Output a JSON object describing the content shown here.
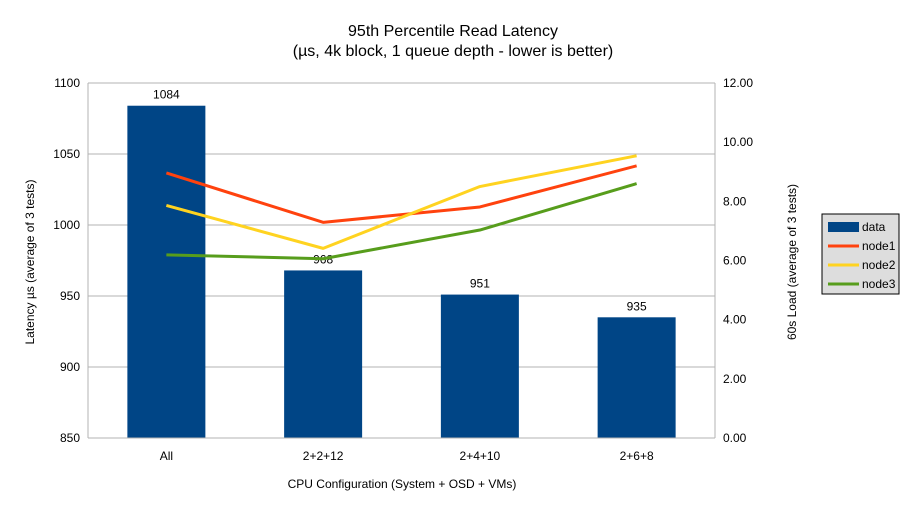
{
  "chart_data": {
    "type": "bar+line",
    "title": "95th Percentile Read Latency",
    "subtitle": "(µs, 4k block, 1 queue depth - lower is better)",
    "xlabel": "CPU Configuration (System + OSD + VMs)",
    "ylabel": "Latency µs (average of 3 tests)",
    "y2label": "60s Load (average of 3 tests)",
    "categories": [
      "All",
      "2+2+12",
      "2+4+10",
      "2+6+8"
    ],
    "ylim": [
      850,
      1100
    ],
    "yticks": [
      "850",
      "900",
      "950",
      "1000",
      "1050",
      "1100"
    ],
    "y2lim": [
      0,
      12
    ],
    "y2ticks": [
      "0.00",
      "2.00",
      "4.00",
      "6.00",
      "8.00",
      "10.00",
      "12.00"
    ],
    "grid": true,
    "legend_position": "right",
    "bar_series": {
      "name": "data",
      "axis": "left",
      "color": "#004586",
      "values": [
        1084,
        968,
        951,
        935
      ],
      "labels": [
        "1084",
        "968",
        "951",
        "935"
      ]
    },
    "line_series": [
      {
        "name": "node1",
        "axis": "right",
        "color": "#ff420e",
        "values": [
          8.96,
          7.29,
          7.81,
          9.2
        ]
      },
      {
        "name": "node2",
        "axis": "right",
        "color": "#ffd320",
        "values": [
          7.86,
          6.41,
          8.5,
          9.54
        ]
      },
      {
        "name": "node3",
        "axis": "right",
        "color": "#579d1c",
        "values": [
          6.19,
          6.06,
          7.03,
          8.6
        ]
      }
    ]
  }
}
